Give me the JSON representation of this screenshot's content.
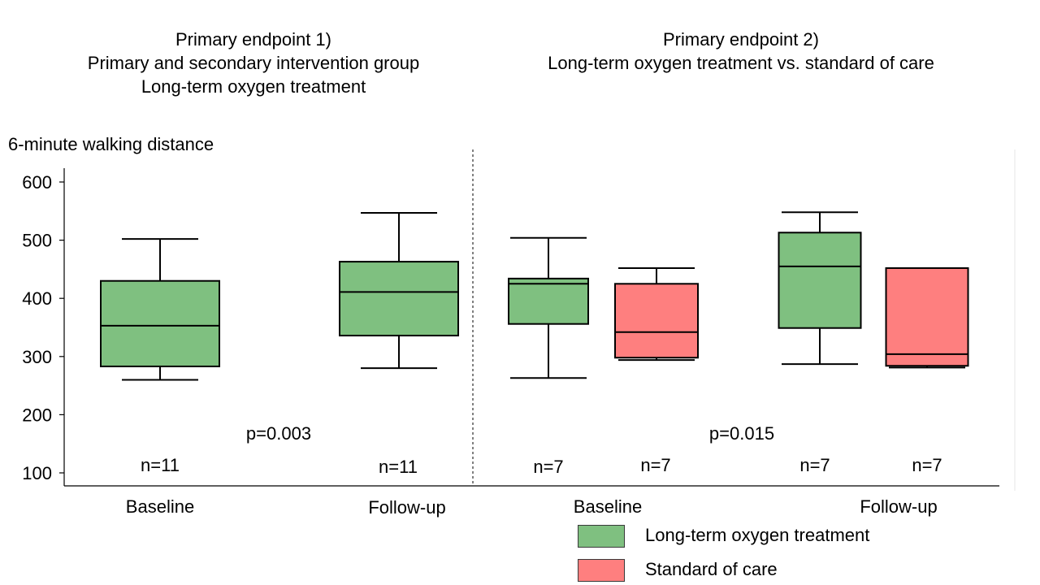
{
  "headings": {
    "left": [
      "Primary endpoint 1)",
      "Primary and secondary intervention group",
      "Long-term oxygen treatment"
    ],
    "right": [
      "Primary endpoint 2)",
      "Long-term oxygen treatment vs. standard of care"
    ]
  },
  "colors": {
    "oxygen": "#7fc080",
    "standard": "#fe7f7f",
    "stroke": "#000000"
  },
  "legend": [
    {
      "label": "Long-term oxygen treatment",
      "color": "#7fc080"
    },
    {
      "label": "Standard of care",
      "color": "#fe7f7f"
    }
  ],
  "chart_data": {
    "type": "box",
    "ylabel": "6-minute walking distance",
    "ylim": [
      100,
      620
    ],
    "yticks": [
      100,
      200,
      300,
      400,
      500,
      600
    ],
    "panels": [
      {
        "title": "Primary endpoint 1)",
        "pvalue": "p=0.003"
      },
      {
        "title": "Primary endpoint 2)",
        "pvalue": "p=0.015"
      }
    ],
    "x_labels": [
      "Baseline",
      "Follow-up",
      "Baseline",
      "Follow-up"
    ],
    "boxes": [
      {
        "panel": 0,
        "group": "Baseline",
        "series": "Long-term oxygen treatment",
        "n": "n=11",
        "min": 260,
        "q1": 283,
        "median": 353,
        "q3": 430,
        "max": 502
      },
      {
        "panel": 0,
        "group": "Follow-up",
        "series": "Long-term oxygen treatment",
        "n": "n=11",
        "min": 280,
        "q1": 336,
        "median": 411,
        "q3": 463,
        "max": 547
      },
      {
        "panel": 1,
        "group": "Baseline",
        "series": "Long-term oxygen treatment",
        "n": "n=7",
        "min": 263,
        "q1": 356,
        "median": 425,
        "q3": 434,
        "max": 504
      },
      {
        "panel": 1,
        "group": "Baseline",
        "series": "Standard of care",
        "n": "n=7",
        "min": 294,
        "q1": 298,
        "median": 342,
        "q3": 425,
        "max": 452
      },
      {
        "panel": 1,
        "group": "Follow-up",
        "series": "Long-term oxygen treatment",
        "n": "n=7",
        "min": 287,
        "q1": 349,
        "median": 455,
        "q3": 513,
        "max": 548
      },
      {
        "panel": 1,
        "group": "Follow-up",
        "series": "Standard of care",
        "n": "n=7",
        "min": 281,
        "q1": 284,
        "median": 304,
        "q3": 452,
        "max": 452
      }
    ]
  }
}
